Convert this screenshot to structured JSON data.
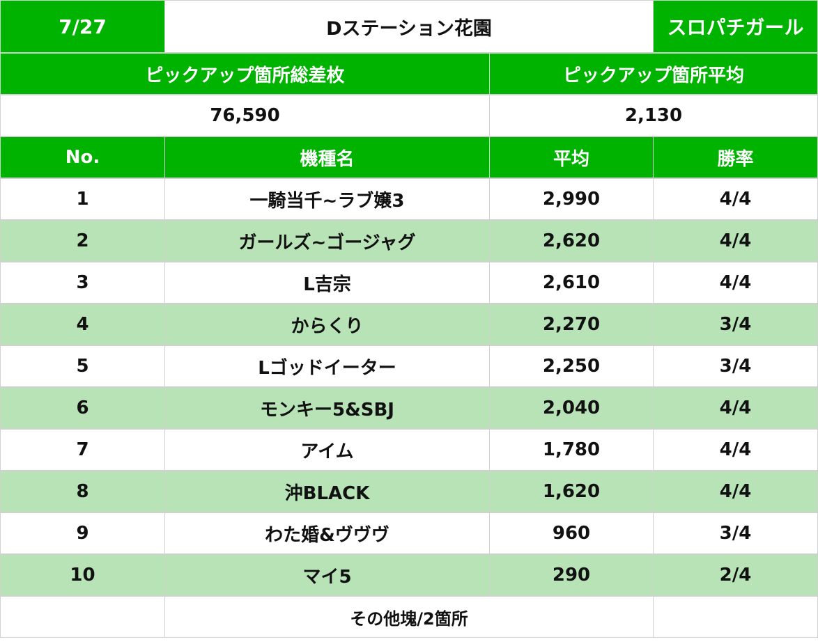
{
  "header": {
    "date": "7/27",
    "store": "Dステーション花園",
    "label": "スロパチガール"
  },
  "summary": {
    "total_label": "ピックアップ箇所総差枚",
    "average_label": "ピックアップ箇所平均",
    "total_value": "76,590",
    "average_value": "2,130"
  },
  "table": {
    "columns": [
      "No.",
      "機種名",
      "平均",
      "勝率"
    ],
    "rows": [
      {
        "no": "1",
        "name": "一騎当千~ラブ嬢3",
        "avg": "2,990",
        "win": "4/4"
      },
      {
        "no": "2",
        "name": "ガールズ~ゴージャグ",
        "avg": "2,620",
        "win": "4/4"
      },
      {
        "no": "3",
        "name": "L吉宗",
        "avg": "2,610",
        "win": "4/4"
      },
      {
        "no": "4",
        "name": "からくり",
        "avg": "2,270",
        "win": "3/4"
      },
      {
        "no": "5",
        "name": "Lゴッドイーター",
        "avg": "2,250",
        "win": "3/4"
      },
      {
        "no": "6",
        "name": "モンキー5&SBJ",
        "avg": "2,040",
        "win": "4/4"
      },
      {
        "no": "7",
        "name": "アイム",
        "avg": "1,780",
        "win": "4/4"
      },
      {
        "no": "8",
        "name": "沖BLACK",
        "avg": "1,620",
        "win": "4/4"
      },
      {
        "no": "9",
        "name": "わた婚&ヴヴヴ",
        "avg": "960",
        "win": "3/4"
      },
      {
        "no": "10",
        "name": "マイ5",
        "avg": "290",
        "win": "2/4"
      }
    ],
    "footer": "その他塊/2箇所"
  },
  "colors": {
    "header_green": "#00b300",
    "stripe_green": "#b7e3b7",
    "border": "#d0d0d0"
  }
}
